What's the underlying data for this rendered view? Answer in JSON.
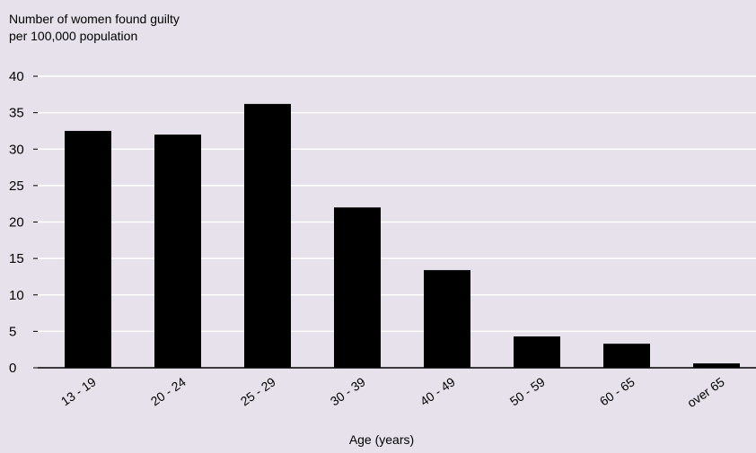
{
  "chart_data": {
    "type": "bar",
    "ylabel_lines": [
      "Number of women found guilty",
      "per 100,000 population"
    ],
    "xlabel": "Age (years)",
    "categories": [
      "13 - 19",
      "20 - 24",
      "25 - 29",
      "30 - 39",
      "40 - 49",
      "50 - 59",
      "60 - 65",
      "over 65"
    ],
    "values": [
      32.5,
      32,
      36.2,
      22,
      13.4,
      4.3,
      3.3,
      0.6
    ],
    "yticks": [
      "0",
      "5",
      "10",
      "15",
      "20",
      "25",
      "30",
      "35",
      "40"
    ],
    "ylim": [
      0,
      40
    ],
    "grid": true,
    "colors": {
      "bar": "#000000",
      "background": "#e6e1ea",
      "grid": "#ffffff"
    }
  }
}
